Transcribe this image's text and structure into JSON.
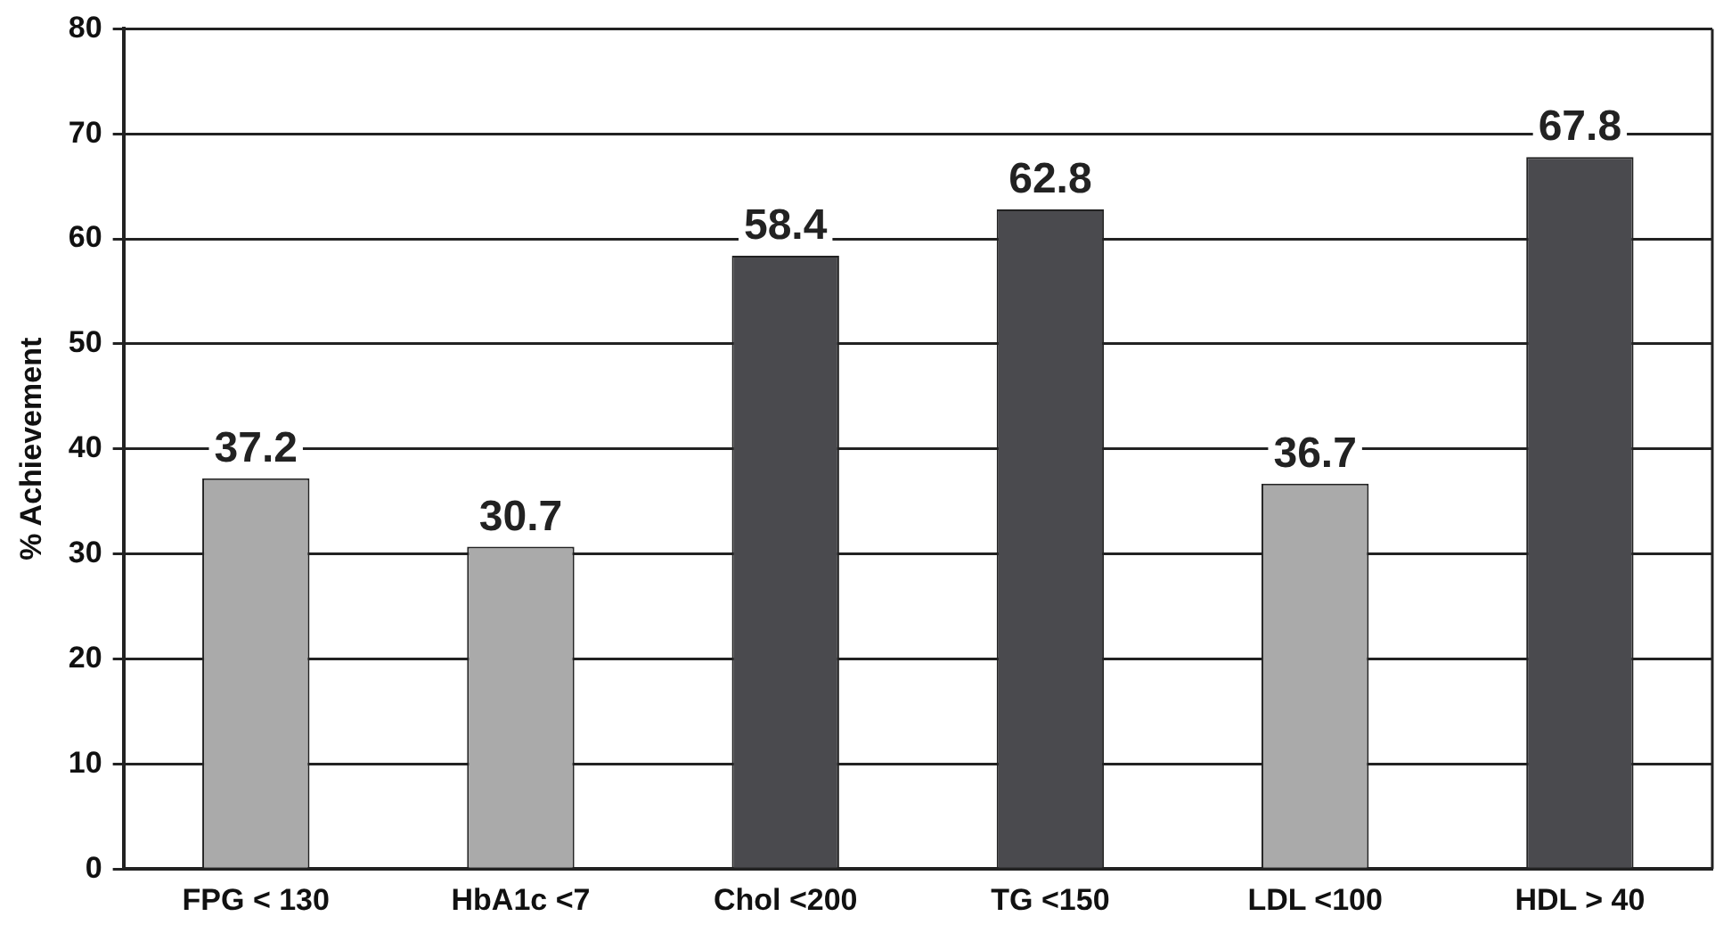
{
  "chart_data": {
    "type": "bar",
    "ylabel": "% Achievement",
    "categories": [
      "FPG < 130",
      "HbA1c <7",
      "Chol <200",
      "TG <150",
      "LDL <100",
      "HDL > 40"
    ],
    "values": [
      37.2,
      30.7,
      58.4,
      62.8,
      36.7,
      67.8
    ],
    "colors": [
      "#aaaaaa",
      "#aaaaaa",
      "#4a4a4e",
      "#4a4a4e",
      "#aaaaaa",
      "#4a4a4e"
    ],
    "ylim": [
      0,
      80
    ],
    "yticks": [
      0,
      10,
      20,
      30,
      40,
      50,
      60,
      70,
      80
    ],
    "grid": "y",
    "data_labels": true
  }
}
